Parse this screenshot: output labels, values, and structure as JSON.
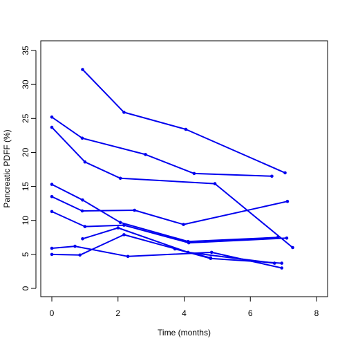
{
  "chart_data": {
    "type": "line",
    "title": "",
    "xlabel": "Time (months)",
    "ylabel": "Pancreatic PDFF (%)",
    "xlim": [
      0,
      8
    ],
    "ylim": [
      0,
      35
    ],
    "x_ticks": [
      "0",
      "2",
      "4",
      "6",
      "8"
    ],
    "y_ticks": [
      "0",
      "5",
      "10",
      "15",
      "20",
      "25",
      "30",
      "35"
    ],
    "grid": false,
    "line_color": "#0000ee",
    "series": [
      {
        "x": [
          0.93,
          2.18,
          4.05,
          7.05
        ],
        "y": [
          32.2,
          25.9,
          23.4,
          17.0
        ]
      },
      {
        "x": [
          0.0,
          0.92,
          2.83,
          4.3,
          6.65
        ],
        "y": [
          25.2,
          22.1,
          19.7,
          16.9,
          16.5
        ]
      },
      {
        "x": [
          0.0,
          1.0,
          2.07,
          4.93,
          7.28
        ],
        "y": [
          23.7,
          18.6,
          16.2,
          15.4,
          6.0
        ]
      },
      {
        "x": [
          0.0,
          0.93,
          2.07,
          4.12,
          6.83
        ],
        "y": [
          15.3,
          13.0,
          9.7,
          6.9,
          7.5
        ]
      },
      {
        "x": [
          0.0,
          0.92,
          2.5,
          3.98,
          7.12
        ],
        "y": [
          13.5,
          11.4,
          11.5,
          9.4,
          12.8
        ]
      },
      {
        "x": [
          0.0,
          1.0,
          2.18,
          4.14,
          7.1
        ],
        "y": [
          11.3,
          9.1,
          9.3,
          6.7,
          7.4
        ]
      },
      {
        "x": [
          0.93,
          2.0,
          4.12,
          6.73
        ],
        "y": [
          7.3,
          8.9,
          5.3,
          3.7
        ]
      },
      {
        "x": [
          0.0,
          0.7,
          2.3,
          4.83,
          6.95
        ],
        "y": [
          5.9,
          6.2,
          4.7,
          5.3,
          3.0
        ]
      },
      {
        "x": [
          0.0,
          0.85,
          2.18,
          4.8,
          6.95
        ],
        "y": [
          5.0,
          4.9,
          7.9,
          4.4,
          3.7
        ]
      },
      {
        "x": [
          3.72,
          4.8
        ],
        "y": [
          5.8,
          4.5
        ]
      }
    ]
  }
}
